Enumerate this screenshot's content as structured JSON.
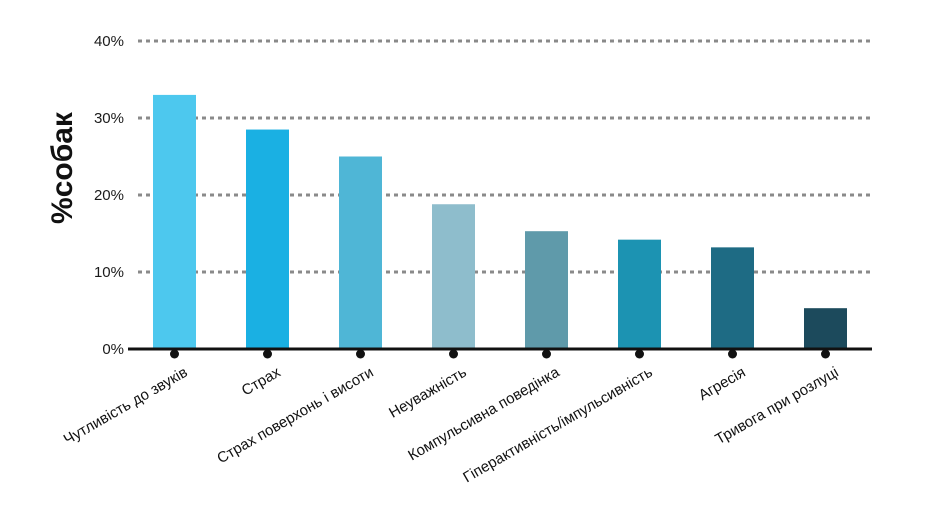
{
  "chart_data": {
    "type": "bar",
    "title": "",
    "xlabel": "",
    "ylabel": "%собак",
    "ylim": [
      0,
      40
    ],
    "yticks": [
      0,
      10,
      20,
      30,
      40
    ],
    "ytick_labels": [
      "0%",
      "10%",
      "20%",
      "30%",
      "40%"
    ],
    "grid": true,
    "categories": [
      "Чутливість до звуків",
      "Страх",
      "Страх поверхонь і висоти",
      "Неуважність",
      "Компульсивна поведінка",
      "Гіперактивність/імпульсивність",
      "Агресія",
      "Тривога при розлуці"
    ],
    "values": [
      33,
      28.5,
      25,
      18.8,
      15.3,
      14.2,
      13.2,
      5.3
    ],
    "colors": [
      "#4dc8ee",
      "#1ab0e3",
      "#4fb6d6",
      "#8ebdcc",
      "#5f9aaa",
      "#1c93b2",
      "#1e6b84",
      "#1c4a5c"
    ]
  }
}
